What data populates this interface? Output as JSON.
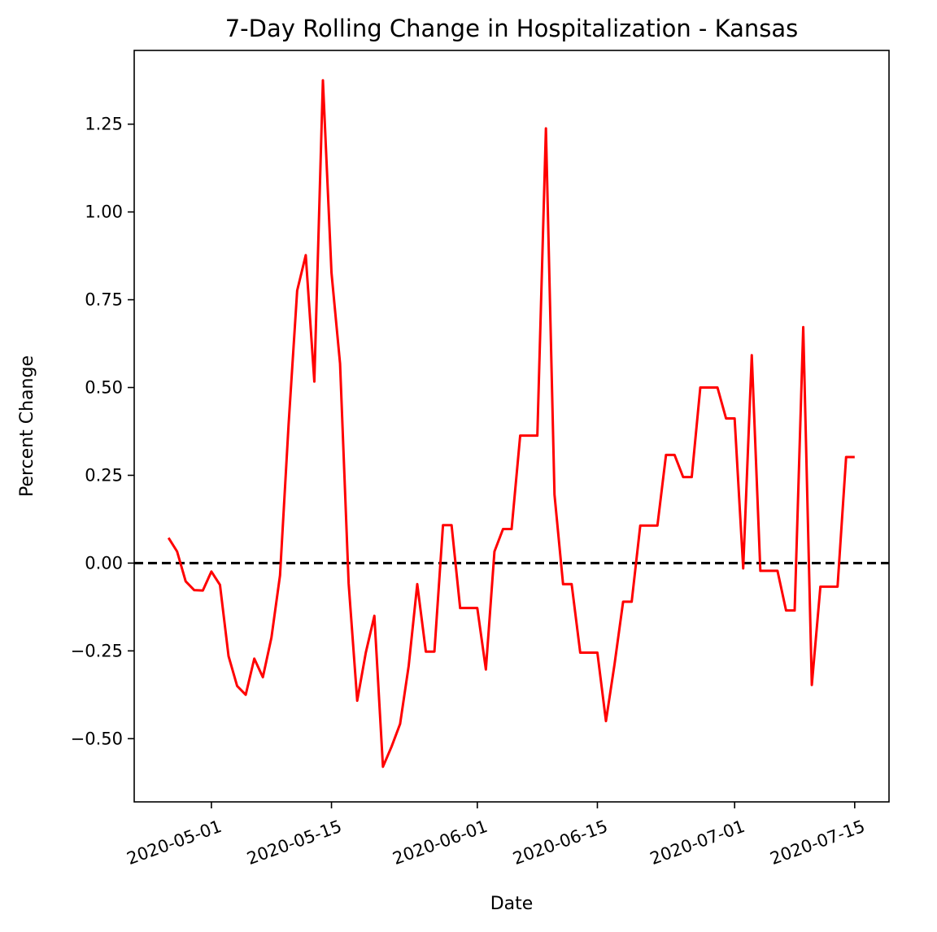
{
  "chart_data": {
    "type": "line",
    "title": "7-Day Rolling Change in Hospitalization - Kansas",
    "xlabel": "Date",
    "ylabel": "Percent Change",
    "xlim": [
      "2020-04-22",
      "2020-07-19"
    ],
    "ylim": [
      -0.68,
      1.46
    ],
    "x_ticks": [
      {
        "date": "2020-05-01",
        "label": "2020-05-01"
      },
      {
        "date": "2020-05-15",
        "label": "2020-05-15"
      },
      {
        "date": "2020-06-01",
        "label": "2020-06-01"
      },
      {
        "date": "2020-06-15",
        "label": "2020-06-15"
      },
      {
        "date": "2020-07-01",
        "label": "2020-07-01"
      },
      {
        "date": "2020-07-15",
        "label": "2020-07-15"
      }
    ],
    "y_ticks": [
      {
        "value": -0.5,
        "label": "−0.50"
      },
      {
        "value": -0.25,
        "label": "−0.25"
      },
      {
        "value": 0.0,
        "label": "0.00"
      },
      {
        "value": 0.25,
        "label": "0.25"
      },
      {
        "value": 0.5,
        "label": "0.50"
      },
      {
        "value": 0.75,
        "label": "0.75"
      },
      {
        "value": 1.0,
        "label": "1.00"
      },
      {
        "value": 1.25,
        "label": "1.25"
      }
    ],
    "reference_line": {
      "y": 0.0,
      "style": "dashed",
      "color": "#000000"
    },
    "series": [
      {
        "color": "#ff0000",
        "points": [
          [
            "2020-04-26",
            0.072
          ],
          [
            "2020-04-27",
            0.033
          ],
          [
            "2020-04-28",
            -0.052
          ],
          [
            "2020-04-29",
            -0.077
          ],
          [
            "2020-04-30",
            -0.078
          ],
          [
            "2020-05-01",
            -0.024
          ],
          [
            "2020-05-02",
            -0.062
          ],
          [
            "2020-05-03",
            -0.265
          ],
          [
            "2020-05-04",
            -0.35
          ],
          [
            "2020-05-05",
            -0.375
          ],
          [
            "2020-05-06",
            -0.272
          ],
          [
            "2020-05-07",
            -0.325
          ],
          [
            "2020-05-08",
            -0.212
          ],
          [
            "2020-05-09",
            -0.035
          ],
          [
            "2020-05-10",
            0.395
          ],
          [
            "2020-05-11",
            0.776
          ],
          [
            "2020-05-12",
            0.877
          ],
          [
            "2020-05-13",
            0.517
          ],
          [
            "2020-05-14",
            1.375
          ],
          [
            "2020-05-15",
            0.827
          ],
          [
            "2020-05-16",
            0.568
          ],
          [
            "2020-05-17",
            -0.058
          ],
          [
            "2020-05-18",
            -0.392
          ],
          [
            "2020-05-19",
            -0.255
          ],
          [
            "2020-05-20",
            -0.15
          ],
          [
            "2020-05-21",
            -0.58
          ],
          [
            "2020-05-22",
            -0.523
          ],
          [
            "2020-05-23",
            -0.458
          ],
          [
            "2020-05-24",
            -0.293
          ],
          [
            "2020-05-25",
            -0.06
          ],
          [
            "2020-05-26",
            -0.252
          ],
          [
            "2020-05-27",
            -0.252
          ],
          [
            "2020-05-28",
            0.108
          ],
          [
            "2020-05-29",
            0.108
          ],
          [
            "2020-05-30",
            -0.128
          ],
          [
            "2020-05-31",
            -0.128
          ],
          [
            "2020-06-01",
            -0.128
          ],
          [
            "2020-06-02",
            -0.303
          ],
          [
            "2020-06-03",
            0.033
          ],
          [
            "2020-06-04",
            0.097
          ],
          [
            "2020-06-05",
            0.097
          ],
          [
            "2020-06-06",
            0.363
          ],
          [
            "2020-06-07",
            0.363
          ],
          [
            "2020-06-08",
            0.363
          ],
          [
            "2020-06-09",
            1.238
          ],
          [
            "2020-06-10",
            0.195
          ],
          [
            "2020-06-11",
            -0.06
          ],
          [
            "2020-06-12",
            -0.06
          ],
          [
            "2020-06-13",
            -0.255
          ],
          [
            "2020-06-14",
            -0.255
          ],
          [
            "2020-06-15",
            -0.255
          ],
          [
            "2020-06-16",
            -0.45
          ],
          [
            "2020-06-17",
            -0.288
          ],
          [
            "2020-06-18",
            -0.11
          ],
          [
            "2020-06-19",
            -0.11
          ],
          [
            "2020-06-20",
            0.107
          ],
          [
            "2020-06-21",
            0.107
          ],
          [
            "2020-06-22",
            0.107
          ],
          [
            "2020-06-23",
            0.308
          ],
          [
            "2020-06-24",
            0.308
          ],
          [
            "2020-06-25",
            0.245
          ],
          [
            "2020-06-26",
            0.245
          ],
          [
            "2020-06-27",
            0.5
          ],
          [
            "2020-06-28",
            0.5
          ],
          [
            "2020-06-29",
            0.5
          ],
          [
            "2020-06-30",
            0.412
          ],
          [
            "2020-07-01",
            0.412
          ],
          [
            "2020-07-02",
            -0.015
          ],
          [
            "2020-07-03",
            0.592
          ],
          [
            "2020-07-04",
            -0.022
          ],
          [
            "2020-07-05",
            -0.022
          ],
          [
            "2020-07-06",
            -0.022
          ],
          [
            "2020-07-07",
            -0.135
          ],
          [
            "2020-07-08",
            -0.135
          ],
          [
            "2020-07-09",
            0.672
          ],
          [
            "2020-07-10",
            -0.347
          ],
          [
            "2020-07-11",
            -0.067
          ],
          [
            "2020-07-12",
            -0.067
          ],
          [
            "2020-07-13",
            -0.067
          ],
          [
            "2020-07-14",
            0.302
          ],
          [
            "2020-07-15",
            0.302
          ]
        ]
      }
    ],
    "grid": false,
    "legend": "none"
  }
}
